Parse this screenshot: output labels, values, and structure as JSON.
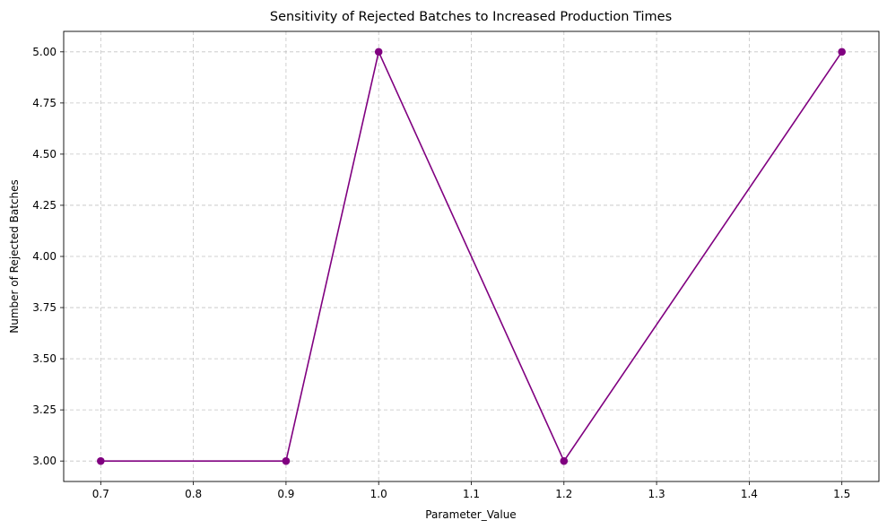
{
  "chart_data": {
    "type": "line",
    "title": "Sensitivity of Rejected Batches to Increased Production Times",
    "xlabel": "Parameter_Value",
    "ylabel": "Number of Rejected Batches",
    "x": [
      0.7,
      0.9,
      1.0,
      1.2,
      1.5
    ],
    "series": [
      {
        "values": [
          3,
          3,
          5,
          3,
          5
        ],
        "color": "#800080",
        "marker": "circle"
      }
    ],
    "xlim": [
      0.66,
      1.54
    ],
    "ylim": [
      2.9,
      5.1
    ],
    "xticks": [
      "0.7",
      "0.8",
      "0.9",
      "1.0",
      "1.1",
      "1.2",
      "1.3",
      "1.4",
      "1.5"
    ],
    "yticks": [
      "3.00",
      "3.25",
      "3.50",
      "3.75",
      "4.00",
      "4.25",
      "4.50",
      "4.75",
      "5.00"
    ],
    "grid": true,
    "grid_style": "dashed"
  }
}
